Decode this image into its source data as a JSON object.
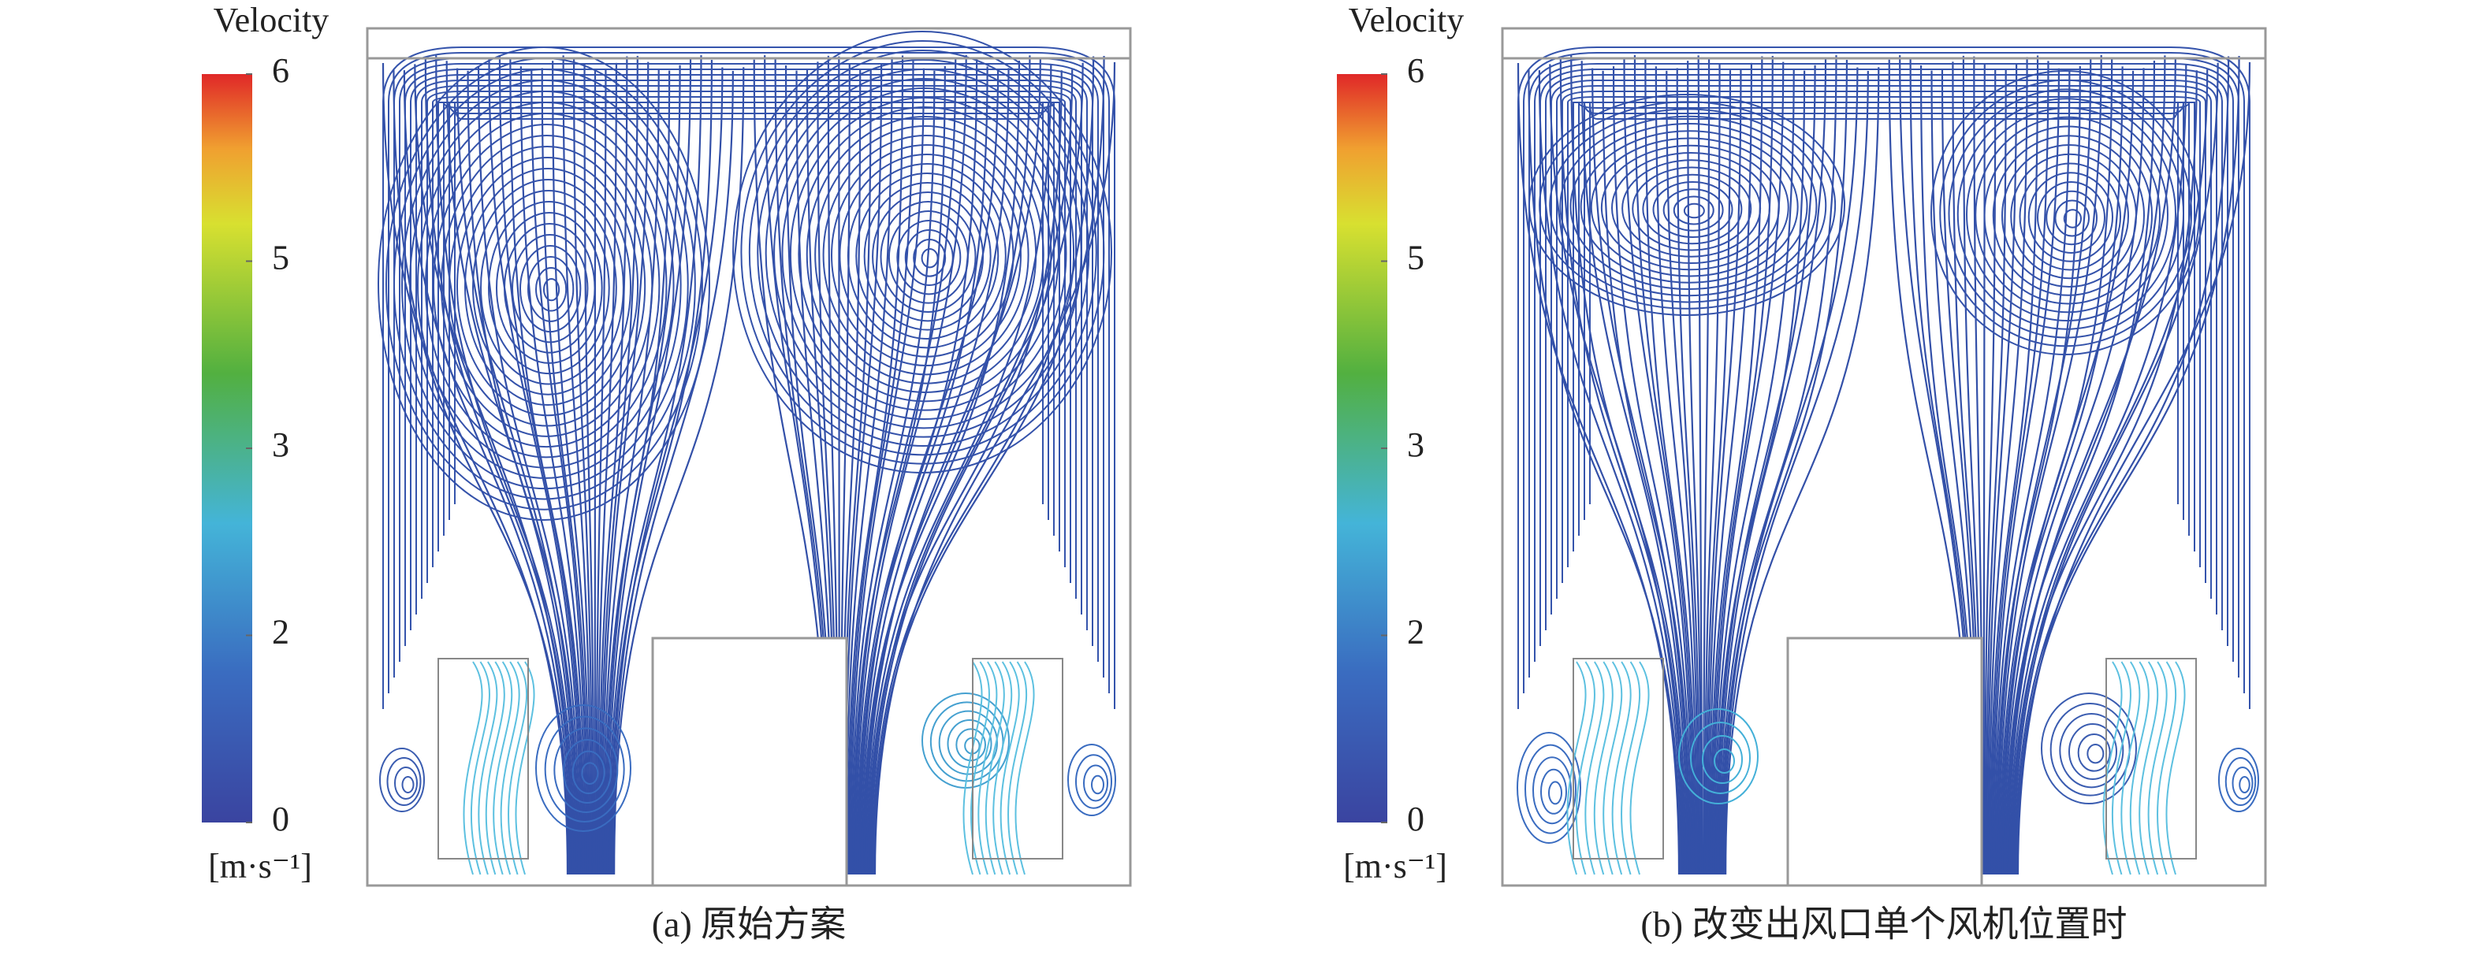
{
  "panels": [
    {
      "colorbar": {
        "title": "Velocity",
        "ticks": [
          6,
          5,
          3,
          2,
          0
        ],
        "unit": "[m·s⁻¹]"
      },
      "caption": "(a) 原始方案"
    },
    {
      "colorbar": {
        "title": "Velocity",
        "ticks": [
          6,
          5,
          3,
          2,
          0
        ],
        "unit": "[m·s⁻¹]"
      },
      "caption": "(b) 改变出风口单个风机位置时"
    }
  ]
}
